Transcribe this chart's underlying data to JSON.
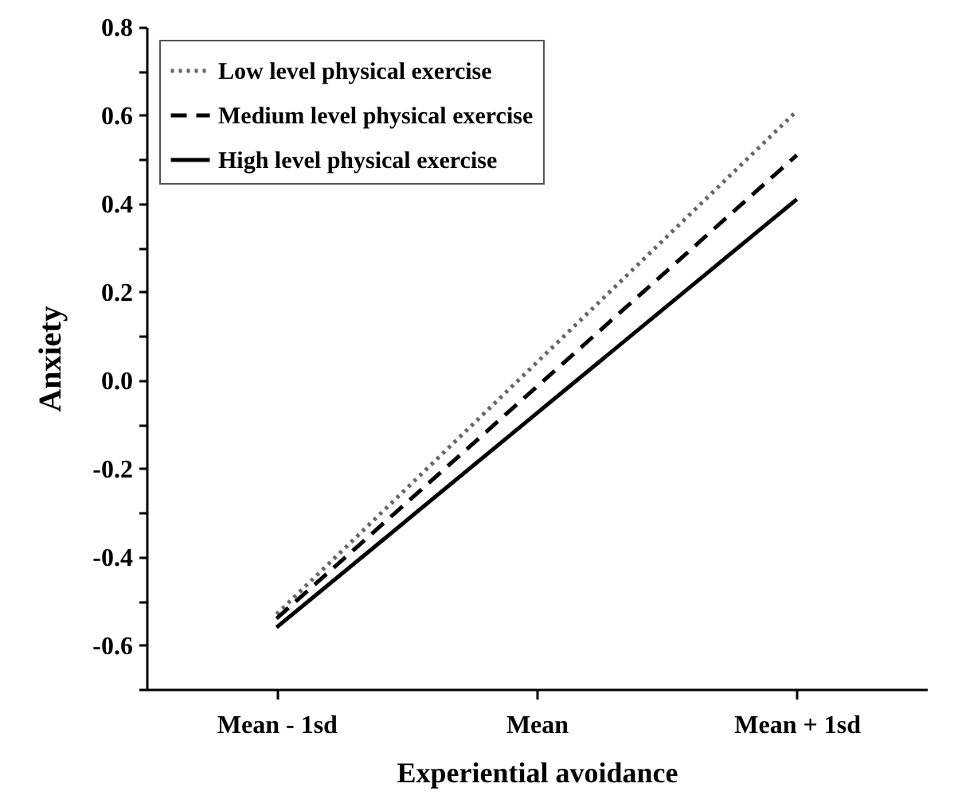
{
  "chart_data": {
    "type": "line",
    "xlabel": "Experiential avoidance",
    "ylabel": "Anxiety",
    "categories": [
      "Mean - 1sd",
      "Mean",
      "Mean + 1sd"
    ],
    "series": [
      {
        "name": "Low level physical exercise",
        "color": "#666666",
        "line_style": "dotted",
        "values": [
          -0.53,
          0.04,
          0.61
        ]
      },
      {
        "name": "Medium level physical exercise",
        "color": "#000000",
        "line_style": "dashed",
        "values": [
          -0.54,
          -0.015,
          0.51
        ]
      },
      {
        "name": "High level physical exercise",
        "color": "#000000",
        "line_style": "solid",
        "values": [
          -0.56,
          -0.075,
          0.41
        ]
      }
    ],
    "ylim": [
      -0.7,
      0.8
    ],
    "yticks": [
      {
        "value": -0.7,
        "label": null
      },
      -0.6,
      {
        "value": -0.5,
        "label": null
      },
      -0.4,
      {
        "value": -0.3,
        "label": null
      },
      -0.2,
      {
        "value": -0.1,
        "label": null
      },
      {
        "value": 0,
        "label": "0.0"
      },
      {
        "value": 0.1,
        "label": null
      },
      0.2,
      {
        "value": 0.3,
        "label": null
      },
      0.4,
      {
        "value": 0.5,
        "label": null
      },
      0.6,
      {
        "value": 0.7,
        "label": null
      },
      0.8
    ],
    "grid": false,
    "legend": "top left"
  }
}
